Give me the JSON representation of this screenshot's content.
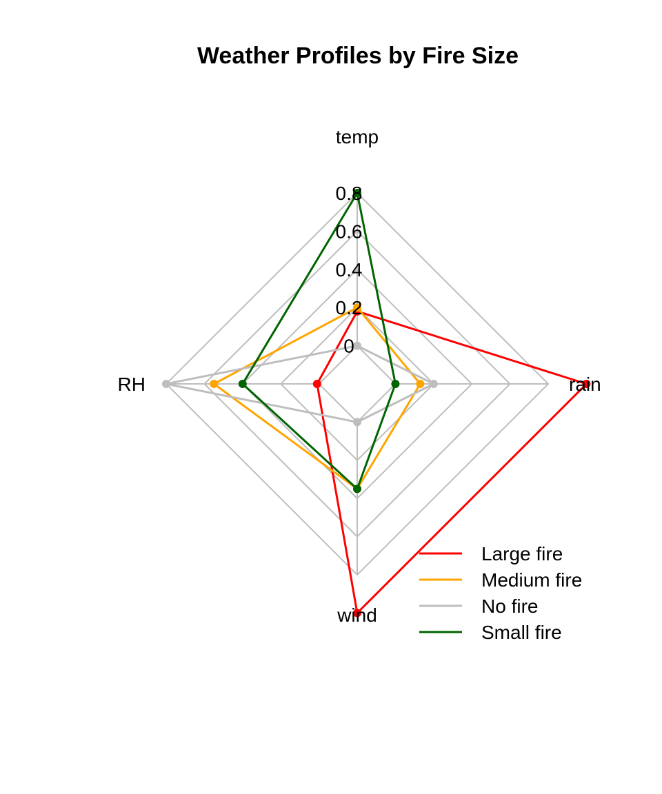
{
  "chart_data": {
    "type": "radar",
    "title": "Weather Profiles by Fire Size",
    "axes": [
      "temp",
      "rain",
      "wind",
      "RH"
    ],
    "ticks": [
      "0",
      "0.2",
      "0.4",
      "0.6",
      "0.8"
    ],
    "tick_values": [
      0,
      0.2,
      0.4,
      0.6,
      0.8
    ],
    "range": [
      0,
      0.8
    ],
    "min_offset": 0.2,
    "grid": true,
    "legend_position": "bottom-right",
    "series": [
      {
        "name": "Large fire",
        "color": "#ff0000",
        "values": [
          0.18,
          1.0,
          1.0,
          0.01
        ]
      },
      {
        "name": "Medium fire",
        "color": "#ffa500",
        "values": [
          0.2,
          0.13,
          0.35,
          0.55
        ]
      },
      {
        "name": "No fire",
        "color": "#bebebe",
        "values": [
          0.0,
          0.2,
          0.0,
          0.8
        ]
      },
      {
        "name": "Small fire",
        "color": "#006400",
        "values": [
          0.8,
          0.0,
          0.35,
          0.4
        ]
      }
    ]
  }
}
